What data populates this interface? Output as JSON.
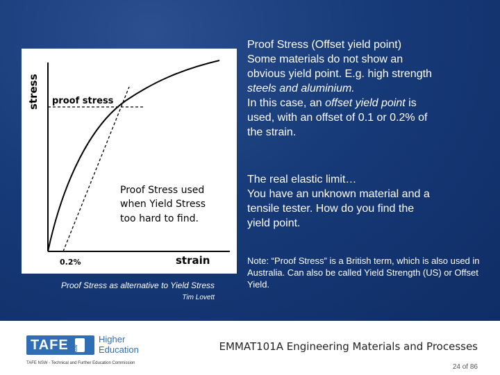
{
  "figure": {
    "y_axis_label": "stress",
    "x_axis_label": "strain",
    "proof_label": "proof stress",
    "offset_label": "0.2%",
    "annotation": [
      "Proof Stress used",
      "when Yield Stress",
      "too hard to find."
    ]
  },
  "caption": "Proof Stress as alternative to Yield Stress",
  "credit": "Tim Lovett",
  "paragraph1": {
    "title": "Proof Stress (Offset yield point)",
    "line1": "Some materials do not show an",
    "line2": "obvious yield point. E.g. high strength",
    "line3": "steels and aluminium.",
    "line4_a": "In this case, an ",
    "line4_b": "offset yield point",
    "line4_c": " is",
    "line5": "used, with an offset of  0.1 or 0.2% of",
    "line6": "the strain."
  },
  "paragraph2": {
    "line1": "The real elastic limit…",
    "line2": "You have an unknown material and a",
    "line3": "tensile tester. How do you find the",
    "line4": "yield point."
  },
  "note": "Note: “Proof Stress” is a British term, which is also used in Australia. Can also be called Yield Strength (US) or Offset Yield.",
  "footer": {
    "course": "EMMAT101A Engineering Materials and Processes",
    "page": "24 of 86",
    "logo_text": "TAFE",
    "logo_badge": "NSW",
    "logo_he_1": "Higher",
    "logo_he_2": "Education",
    "commission": "TAFE NSW - Technical and Further Education Commission"
  }
}
